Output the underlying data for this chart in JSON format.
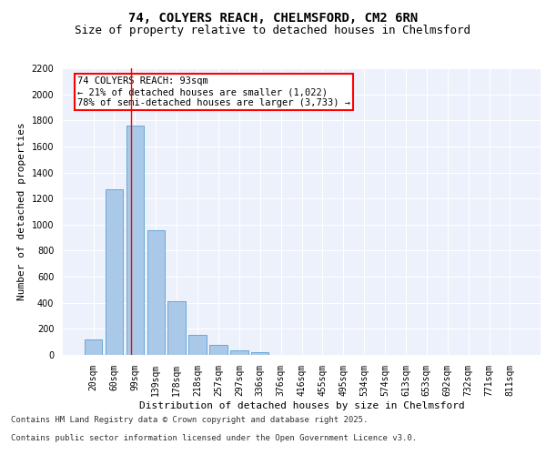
{
  "title_line1": "74, COLYERS REACH, CHELMSFORD, CM2 6RN",
  "title_line2": "Size of property relative to detached houses in Chelmsford",
  "xlabel": "Distribution of detached houses by size in Chelmsford",
  "ylabel": "Number of detached properties",
  "bar_labels": [
    "20sqm",
    "60sqm",
    "99sqm",
    "139sqm",
    "178sqm",
    "218sqm",
    "257sqm",
    "297sqm",
    "336sqm",
    "376sqm",
    "416sqm",
    "455sqm",
    "495sqm",
    "534sqm",
    "574sqm",
    "613sqm",
    "653sqm",
    "692sqm",
    "732sqm",
    "771sqm",
    "811sqm"
  ],
  "bar_values": [
    120,
    1270,
    1760,
    960,
    415,
    155,
    75,
    35,
    20,
    0,
    0,
    0,
    0,
    0,
    0,
    0,
    0,
    0,
    0,
    0,
    0
  ],
  "bar_color": "#aac9e8",
  "bar_edge_color": "#5a9fd4",
  "ylim": [
    0,
    2200
  ],
  "yticks": [
    0,
    200,
    400,
    600,
    800,
    1000,
    1200,
    1400,
    1600,
    1800,
    2000,
    2200
  ],
  "property_line_x": 1.82,
  "property_line_color": "red",
  "annotation_title": "74 COLYERS REACH: 93sqm",
  "annotation_line1": "← 21% of detached houses are smaller (1,022)",
  "annotation_line2": "78% of semi-detached houses are larger (3,733) →",
  "annotation_box_color": "white",
  "annotation_box_edge_color": "red",
  "footer_line1": "Contains HM Land Registry data © Crown copyright and database right 2025.",
  "footer_line2": "Contains public sector information licensed under the Open Government Licence v3.0.",
  "background_color": "#edf1fb",
  "grid_color": "white",
  "title_fontsize": 10,
  "subtitle_fontsize": 9,
  "axis_label_fontsize": 8,
  "tick_fontsize": 7,
  "annotation_fontsize": 7.5,
  "footer_fontsize": 6.5
}
